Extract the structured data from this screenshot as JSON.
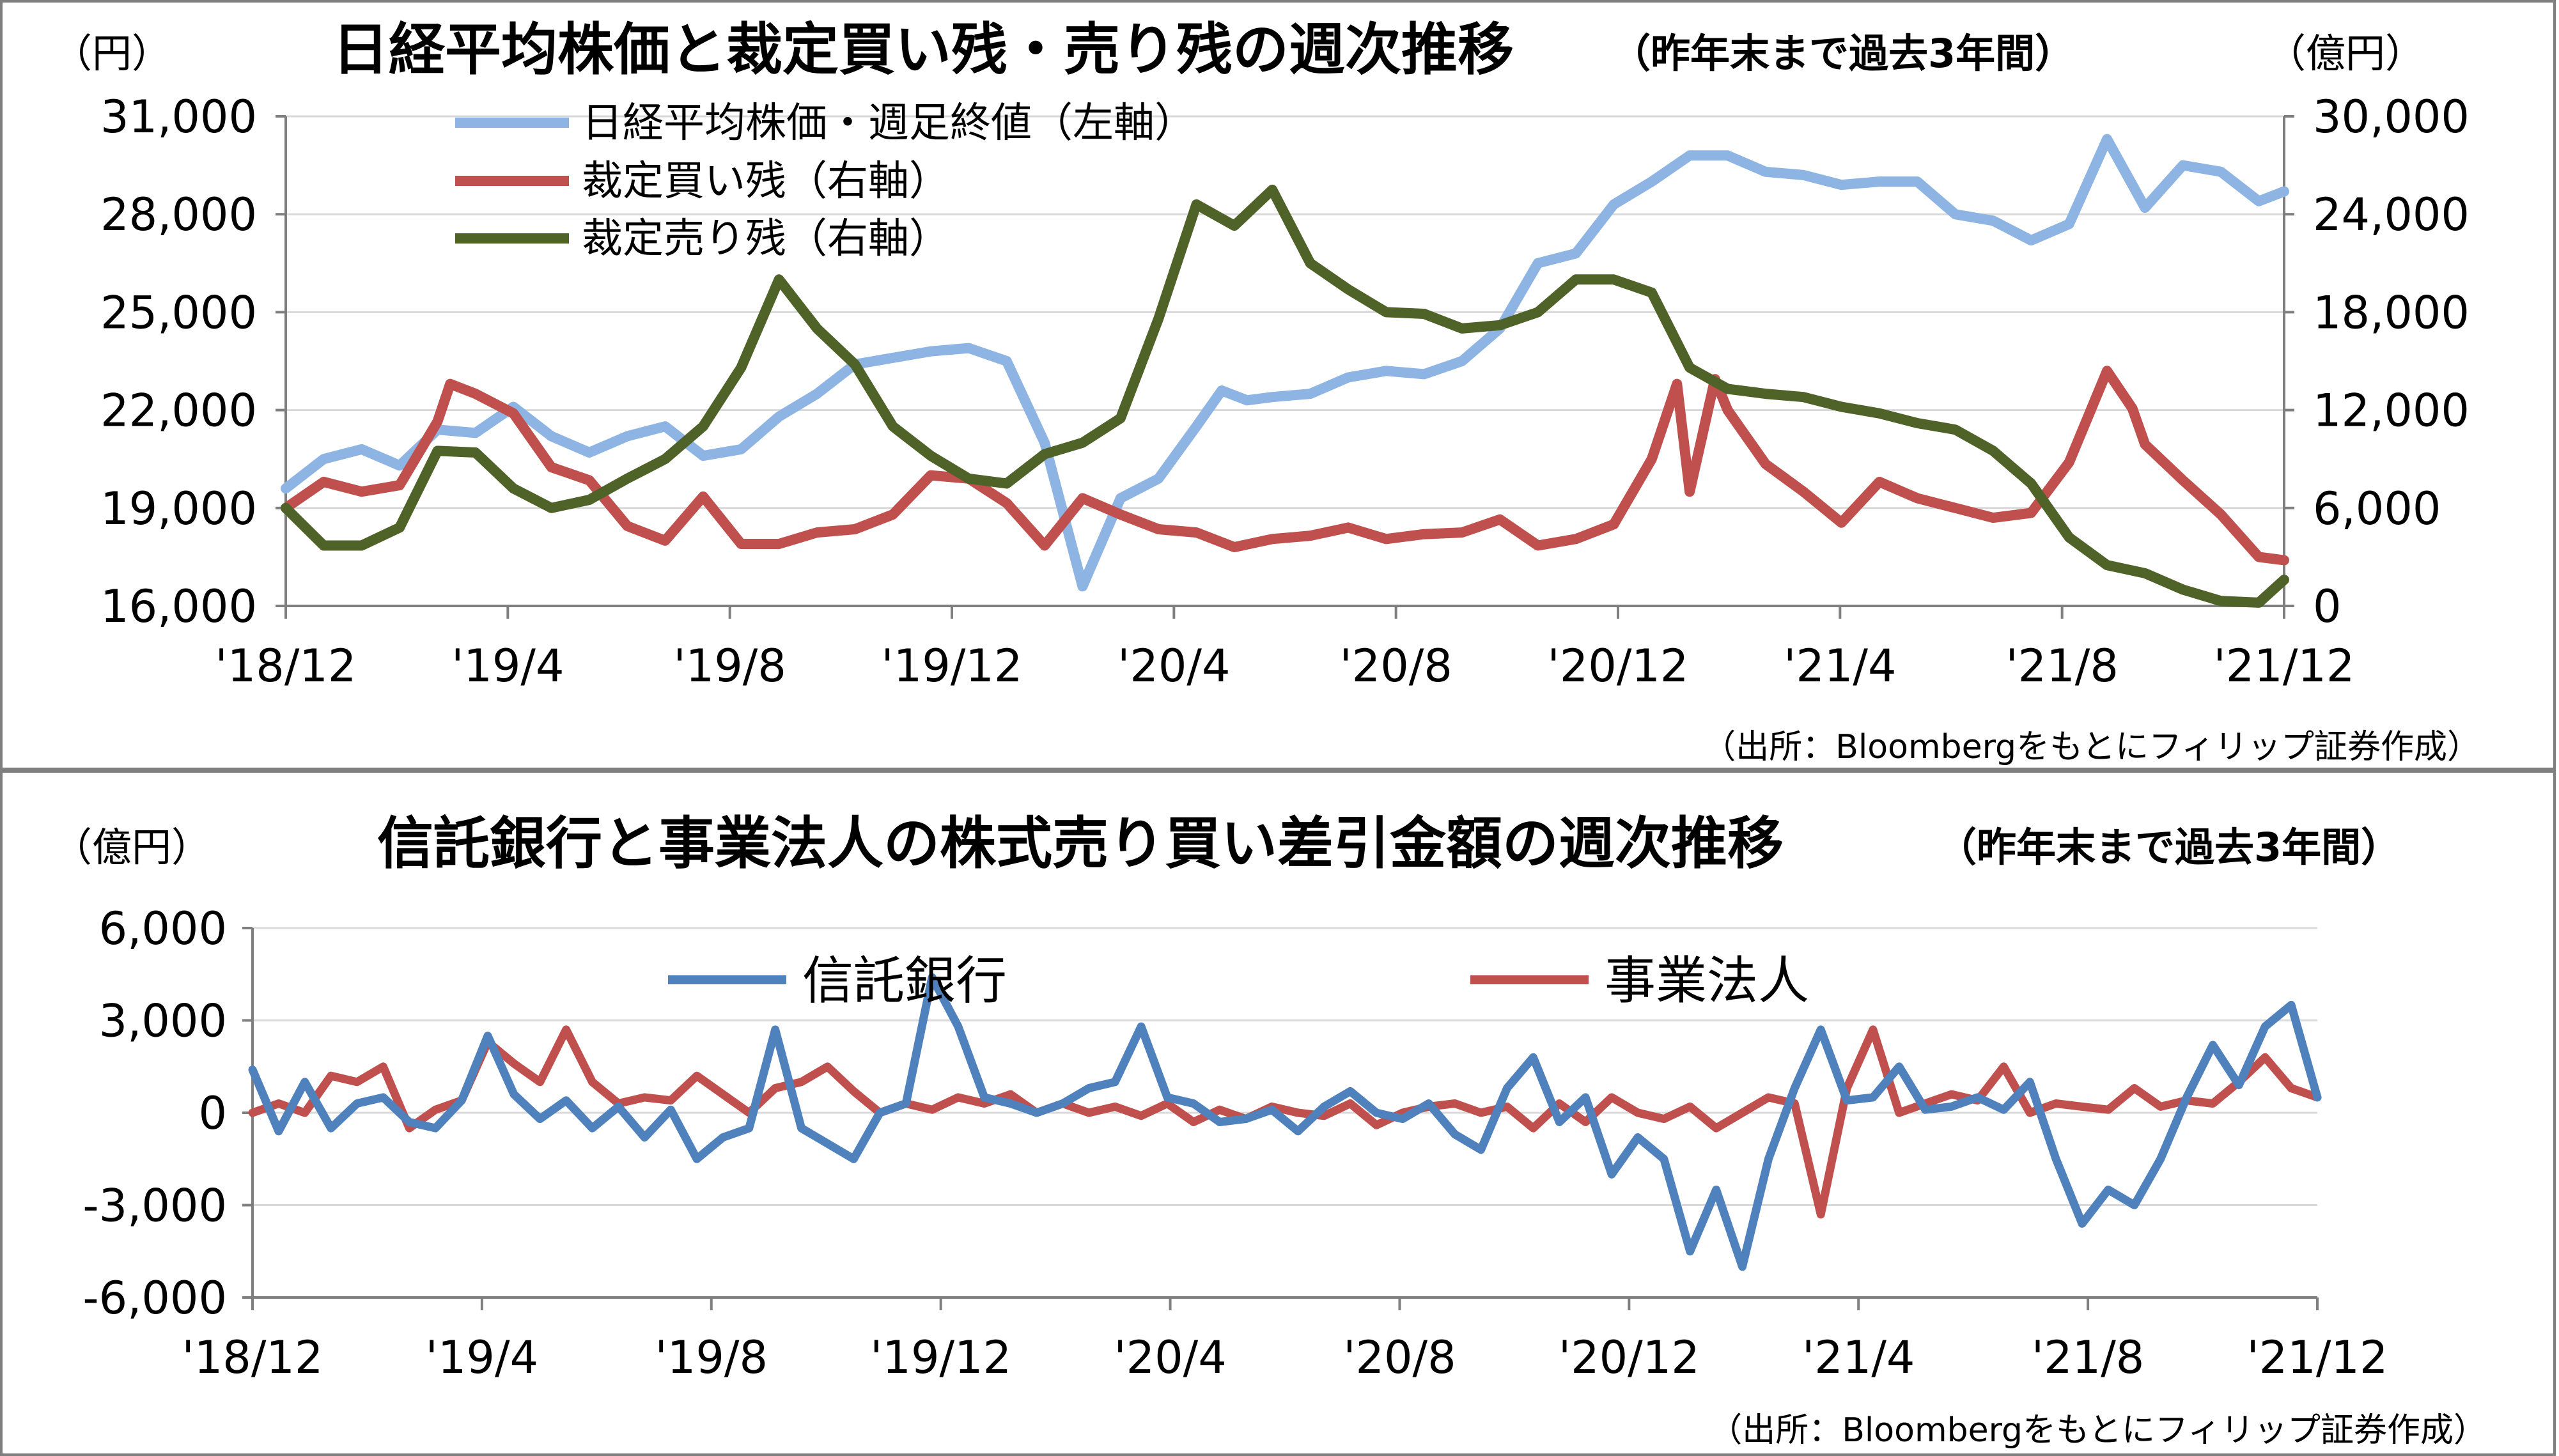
{
  "chart_data": [
    {
      "type": "line",
      "title": "日経平均株価と裁定買い残・売り残の週次推移",
      "subtitle": "（昨年末まで過去3年間）",
      "source": "（出所：Bloombergをもとにフィリップ証券作成）",
      "left_unit": "（円）",
      "right_unit": "（億円）",
      "left_ticks": [
        "31,000",
        "28,000",
        "25,000",
        "22,000",
        "19,000",
        "16,000"
      ],
      "right_ticks": [
        "30,000",
        "24,000",
        "18,000",
        "12,000",
        "6,000",
        "0"
      ],
      "x_ticks": [
        "'18/12",
        "'19/4",
        "'19/8",
        "'19/12",
        "'20/4",
        "'20/8",
        "'20/12",
        "'21/4",
        "'21/8",
        "'21/12"
      ],
      "ylim_left": [
        16000,
        31000
      ],
      "ylim_right": [
        0,
        30000
      ],
      "x_domain": [
        0,
        158
      ],
      "legend_position": "top-left",
      "series": [
        {
          "name": "日経平均株価・週足終値（左軸）",
          "axis": "left",
          "color": "#8db4e2",
          "x": [
            0,
            3,
            6,
            9,
            12,
            15,
            18,
            21,
            24,
            27,
            30,
            33,
            36,
            39,
            42,
            45,
            48,
            51,
            54,
            57,
            60,
            63,
            66,
            69,
            72,
            74,
            76,
            78,
            81,
            84,
            87,
            90,
            93,
            96,
            99,
            102,
            105,
            108,
            111,
            114,
            117,
            120,
            123,
            126,
            129,
            132,
            135,
            138,
            141,
            144,
            147,
            150,
            153,
            156,
            158
          ],
          "y": [
            19600,
            20500,
            20800,
            20300,
            21400,
            21300,
            22100,
            21200,
            20700,
            21200,
            21500,
            20600,
            20800,
            21800,
            22500,
            23400,
            23600,
            23800,
            23900,
            23500,
            21000,
            16600,
            19300,
            19900,
            21500,
            22600,
            22300,
            22400,
            22500,
            23000,
            23200,
            23100,
            23500,
            24500,
            26500,
            26800,
            28300,
            29000,
            29800,
            29800,
            29300,
            29200,
            28900,
            29000,
            29000,
            28000,
            27800,
            27200,
            27700,
            30300,
            28200,
            29500,
            29300,
            28400,
            28700
          ]
        },
        {
          "name": "裁定買い残（右軸）",
          "axis": "right",
          "color": "#c0504d",
          "x": [
            0,
            3,
            6,
            9,
            12,
            13,
            15,
            18,
            21,
            24,
            27,
            30,
            33,
            36,
            39,
            42,
            45,
            48,
            51,
            54,
            57,
            60,
            63,
            66,
            69,
            72,
            75,
            78,
            81,
            84,
            87,
            90,
            93,
            96,
            99,
            102,
            105,
            108,
            110,
            111,
            113,
            114,
            117,
            120,
            123,
            126,
            129,
            132,
            135,
            138,
            141,
            144,
            146,
            147,
            150,
            153,
            156,
            158
          ],
          "y": [
            6000,
            7600,
            7000,
            7400,
            11300,
            13600,
            13000,
            11800,
            8500,
            7700,
            4900,
            4000,
            6700,
            3800,
            3800,
            4500,
            4700,
            5600,
            8000,
            7800,
            6300,
            3700,
            6600,
            5600,
            4700,
            4500,
            3600,
            4100,
            4300,
            4800,
            4100,
            4400,
            4500,
            5300,
            3700,
            4100,
            5000,
            9000,
            13600,
            7000,
            13900,
            12000,
            8700,
            7000,
            5100,
            7600,
            6600,
            6000,
            5400,
            5700,
            8800,
            14400,
            12100,
            9900,
            7700,
            5600,
            3000,
            2800
          ]
        },
        {
          "name": "裁定売り残（右軸）",
          "axis": "right",
          "color": "#4f6228",
          "x": [
            0,
            3,
            6,
            9,
            12,
            15,
            18,
            21,
            24,
            27,
            30,
            33,
            36,
            39,
            42,
            45,
            48,
            51,
            54,
            57,
            60,
            63,
            66,
            69,
            72,
            75,
            78,
            81,
            84,
            87,
            90,
            93,
            96,
            99,
            102,
            105,
            108,
            111,
            114,
            117,
            120,
            123,
            126,
            129,
            132,
            135,
            138,
            141,
            144,
            147,
            150,
            153,
            156,
            158
          ],
          "y": [
            6000,
            3700,
            3700,
            4800,
            9500,
            9400,
            7200,
            6000,
            6500,
            7800,
            9000,
            11000,
            14600,
            20000,
            17000,
            14800,
            11000,
            9200,
            7800,
            7500,
            9300,
            10000,
            11500,
            17600,
            24600,
            23300,
            25500,
            21000,
            19400,
            18000,
            17900,
            17000,
            17200,
            18000,
            20000,
            20000,
            19200,
            14600,
            13300,
            13000,
            12800,
            12200,
            11800,
            11200,
            10800,
            9500,
            7500,
            4200,
            2500,
            2000,
            1000,
            300,
            200,
            1600
          ]
        }
      ]
    },
    {
      "type": "line",
      "title": "信託銀行と事業法人の株式売り買い差引金額の週次推移",
      "subtitle": "（昨年末まで過去3年間）",
      "source": "（出所：Bloombergをもとにフィリップ証券作成）",
      "left_unit": "（億円）",
      "y_ticks": [
        "6,000",
        "3,000",
        "0",
        "-3,000",
        "-6,000"
      ],
      "x_ticks": [
        "'18/12",
        "'19/4",
        "'19/8",
        "'19/12",
        "'20/4",
        "'20/8",
        "'20/12",
        "'21/4",
        "'21/8",
        "'21/12"
      ],
      "ylim": [
        -6000,
        6000
      ],
      "x_domain": [
        0,
        158
      ],
      "negative_tick_color": "#ff0000",
      "legend_position": "top",
      "series": [
        {
          "name": "信託銀行",
          "color": "#4f81bd",
          "x": [
            0,
            2,
            4,
            6,
            8,
            10,
            12,
            14,
            16,
            18,
            20,
            22,
            24,
            26,
            28,
            30,
            32,
            34,
            36,
            38,
            40,
            42,
            44,
            46,
            48,
            50,
            52,
            54,
            56,
            58,
            60,
            62,
            64,
            66,
            68,
            70,
            72,
            74,
            76,
            78,
            80,
            82,
            84,
            86,
            88,
            90,
            92,
            94,
            96,
            98,
            100,
            102,
            104,
            106,
            108,
            110,
            112,
            114,
            116,
            118,
            120,
            122,
            124,
            126,
            128,
            130,
            132,
            134,
            136,
            138,
            140,
            142,
            144,
            146,
            148,
            150,
            152,
            154,
            156,
            158
          ],
          "y": [
            1400,
            -600,
            1000,
            -500,
            300,
            500,
            -300,
            -500,
            400,
            2500,
            600,
            -200,
            400,
            -500,
            200,
            -800,
            100,
            -1500,
            -800,
            -500,
            2700,
            -500,
            -1000,
            -1500,
            0,
            300,
            4400,
            2800,
            500,
            300,
            0,
            300,
            800,
            1000,
            2800,
            500,
            300,
            -300,
            -200,
            100,
            -600,
            200,
            700,
            0,
            -200,
            300,
            -700,
            -1200,
            800,
            1800,
            -300,
            500,
            -2000,
            -800,
            -1500,
            -4500,
            -2500,
            -5000,
            -1500,
            800,
            2700,
            400,
            500,
            1500,
            100,
            200,
            500,
            100,
            1000,
            -1500,
            -3600,
            -2500,
            -3000,
            -1500,
            500,
            2200,
            900,
            2800,
            3500,
            500
          ]
        },
        {
          "name": "事業法人",
          "color": "#c0504d",
          "x": [
            0,
            2,
            4,
            6,
            8,
            10,
            12,
            14,
            16,
            18,
            20,
            22,
            24,
            26,
            28,
            30,
            32,
            34,
            36,
            38,
            40,
            42,
            44,
            46,
            48,
            50,
            52,
            54,
            56,
            58,
            60,
            62,
            64,
            66,
            68,
            70,
            72,
            74,
            76,
            78,
            80,
            82,
            84,
            86,
            88,
            90,
            92,
            94,
            96,
            98,
            100,
            102,
            104,
            106,
            108,
            110,
            112,
            114,
            116,
            118,
            120,
            122,
            124,
            126,
            128,
            130,
            132,
            134,
            136,
            138,
            140,
            142,
            144,
            146,
            148,
            150,
            152,
            154,
            156,
            158
          ],
          "y": [
            0,
            300,
            0,
            1200,
            1000,
            1500,
            -500,
            100,
            400,
            2300,
            1600,
            1000,
            2700,
            1000,
            300,
            500,
            400,
            1200,
            600,
            0,
            800,
            1000,
            1500,
            700,
            0,
            300,
            100,
            500,
            300,
            600,
            0,
            300,
            0,
            200,
            -100,
            300,
            -300,
            100,
            -200,
            200,
            0,
            -100,
            300,
            -400,
            0,
            200,
            300,
            0,
            200,
            -500,
            300,
            -300,
            500,
            0,
            -200,
            200,
            -500,
            0,
            500,
            300,
            -3300,
            800,
            2700,
            0,
            300,
            600,
            400,
            1500,
            0,
            300,
            200,
            100,
            800,
            200,
            400,
            300,
            1000,
            1800,
            800,
            500
          ]
        }
      ]
    }
  ]
}
